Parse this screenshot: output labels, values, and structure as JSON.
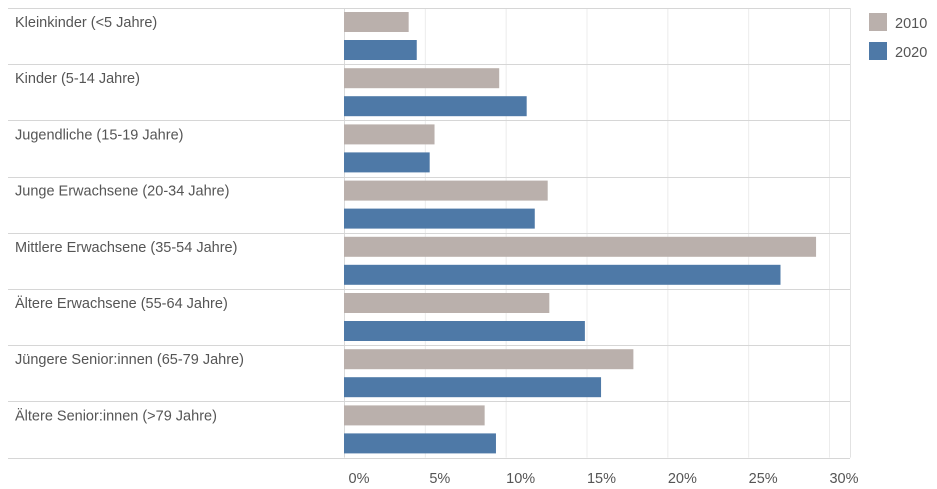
{
  "chart_data": {
    "type": "bar",
    "orientation": "horizontal",
    "title": "",
    "xlabel": "",
    "ylabel": "",
    "categories": [
      "Kleinkinder (<5 Jahre)",
      "Kinder (5-14 Jahre)",
      "Jugendliche (15-19 Jahre)",
      "Junge Erwachsene (20-34 Jahre)",
      "Mittlere Erwachsene (35-54 Jahre)",
      "Ältere Erwachsene (55-64 Jahre)",
      "Jüngere Senior:innen (65-79 Jahre)",
      "Ältere Senior:innen (>79 Jahre)"
    ],
    "series": [
      {
        "name": "2010",
        "color": "#bab0ac",
        "values": [
          4.0,
          9.6,
          5.6,
          12.6,
          29.2,
          12.7,
          17.9,
          8.7
        ]
      },
      {
        "name": "2020",
        "color": "#4e79a7",
        "values": [
          4.5,
          11.3,
          5.3,
          11.8,
          27.0,
          14.9,
          15.9,
          9.4
        ]
      }
    ],
    "xlim": [
      0,
      30
    ],
    "xticks": [
      0,
      5,
      10,
      15,
      20,
      25,
      30
    ],
    "xtick_labels": [
      "0%",
      "5%",
      "10%",
      "15%",
      "20%",
      "25%",
      "30%"
    ],
    "grid": true,
    "legend_position": "top-right"
  }
}
